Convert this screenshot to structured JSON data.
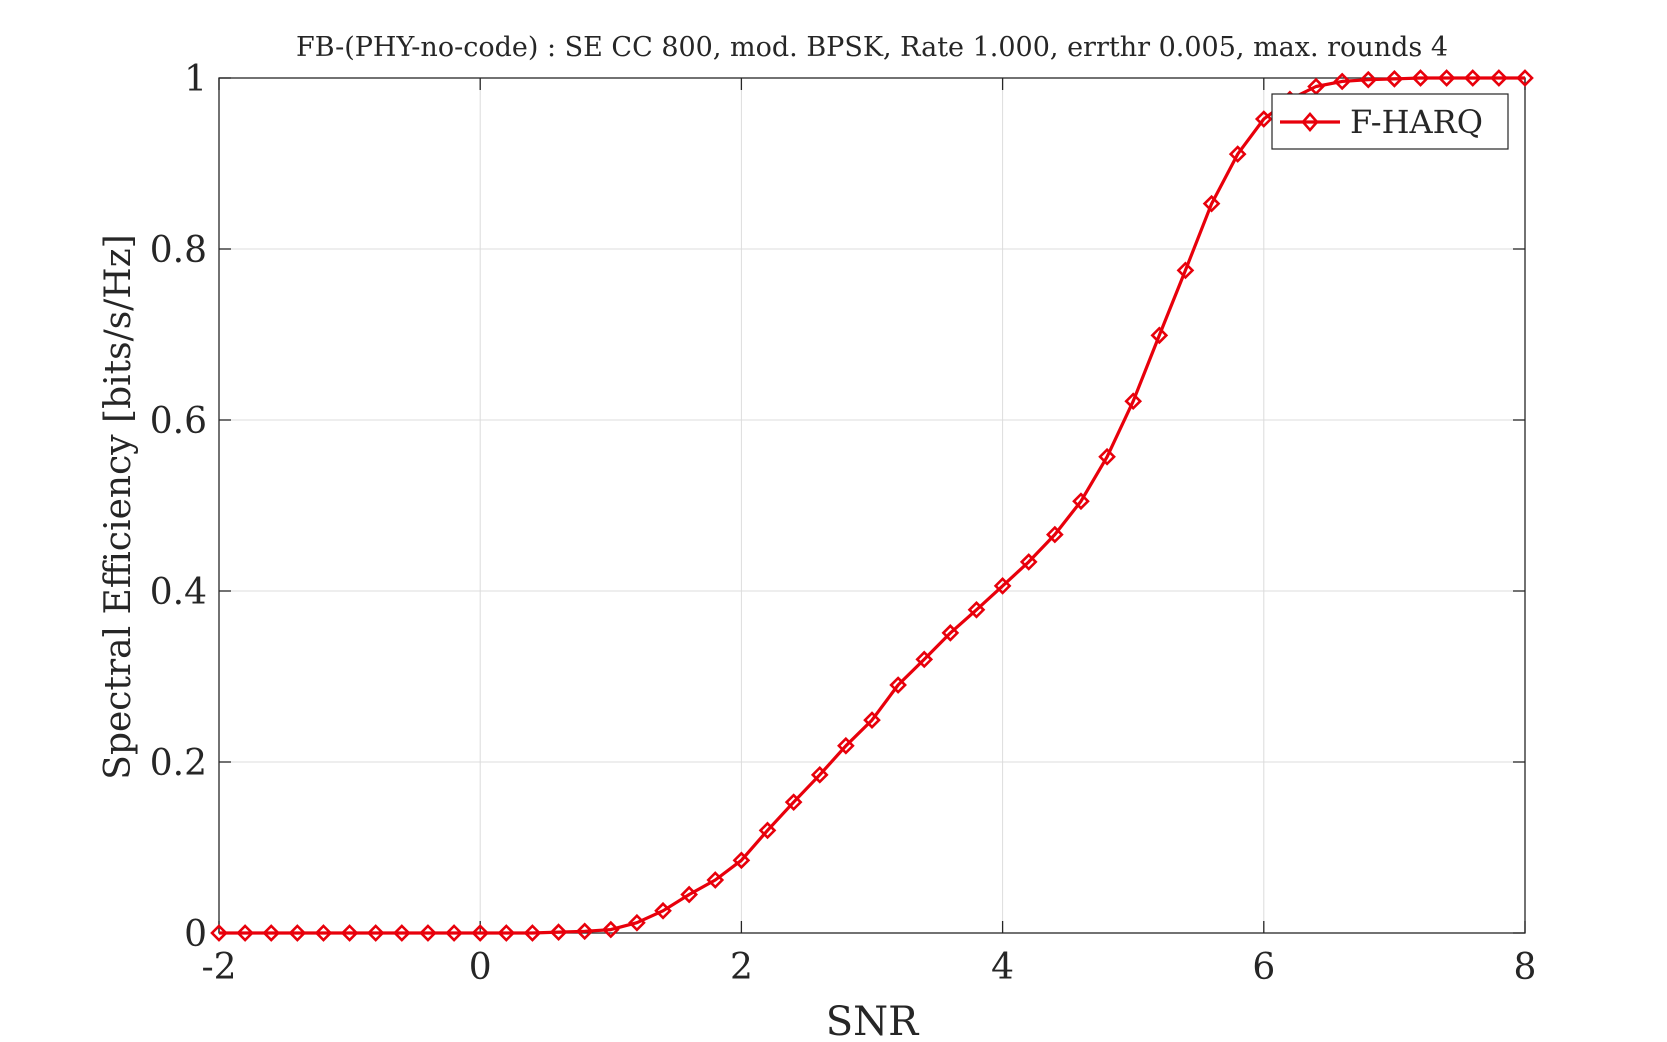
{
  "chart_data": {
    "type": "line",
    "title": "FB-(PHY-no-code) : SE CC 800, mod. BPSK, Rate 1.000, errthr 0.005, max. rounds 4",
    "xlabel": "SNR",
    "ylabel": "Spectral Efficiency [bits/s/Hz]",
    "xlim": [
      -2,
      8
    ],
    "ylim": [
      0,
      1
    ],
    "xticks": [
      -2,
      0,
      2,
      4,
      6,
      8
    ],
    "yticks": [
      0,
      0.2,
      0.4,
      0.6,
      0.8,
      1
    ],
    "xtick_labels": [
      "-2",
      "0",
      "2",
      "4",
      "6",
      "8"
    ],
    "ytick_labels": [
      "0",
      "0.2",
      "0.4",
      "0.6",
      "0.8",
      "1"
    ],
    "grid": true,
    "legend_position": "top-right",
    "series": [
      {
        "name": "F-HARQ",
        "color": "#e8000b",
        "marker": "diamond",
        "x": [
          -2,
          -1.8,
          -1.6,
          -1.4,
          -1.2,
          -1,
          -0.8,
          -0.6,
          -0.4,
          -0.2,
          0,
          0.2,
          0.4,
          0.6,
          0.8,
          1,
          1.2,
          1.4,
          1.6,
          1.8,
          2,
          2.2,
          2.4,
          2.6,
          2.8,
          3,
          3.2,
          3.4,
          3.6,
          3.8,
          4,
          4.2,
          4.4,
          4.6,
          4.8,
          5,
          5.2,
          5.4,
          5.6,
          5.8,
          6,
          6.2,
          6.4,
          6.6,
          6.8,
          7,
          7.2,
          7.4,
          7.6,
          7.8,
          8
        ],
        "y": [
          0,
          0,
          0,
          0,
          0,
          0,
          0,
          0,
          0,
          0,
          0,
          0,
          0,
          0.001,
          0.002,
          0.004,
          0.012,
          0.026,
          0.045,
          0.062,
          0.085,
          0.12,
          0.153,
          0.185,
          0.219,
          0.249,
          0.29,
          0.32,
          0.351,
          0.378,
          0.406,
          0.434,
          0.466,
          0.505,
          0.557,
          0.622,
          0.699,
          0.775,
          0.853,
          0.911,
          0.952,
          0.975,
          0.99,
          0.996,
          0.998,
          0.999,
          1,
          1,
          1,
          1,
          1
        ]
      }
    ]
  }
}
